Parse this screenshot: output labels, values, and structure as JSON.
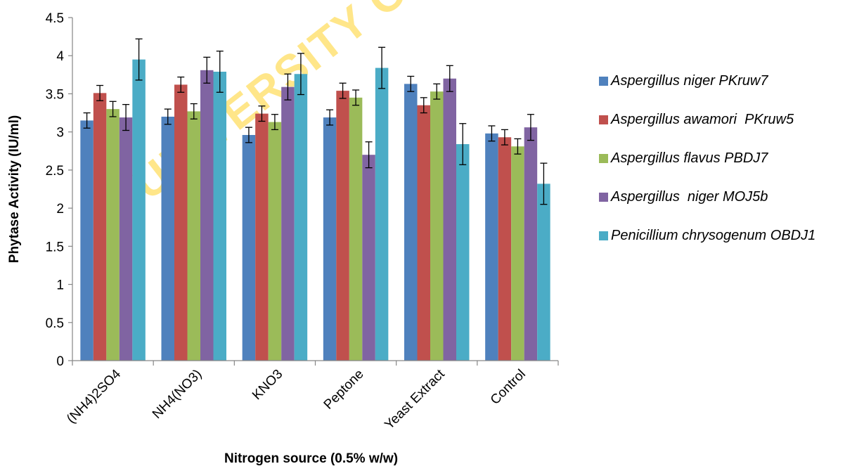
{
  "watermark": "UNIVERSITY OF IBADAN",
  "chart_data": {
    "type": "bar",
    "title": "",
    "xlabel": "Nitrogen source (0.5% w/w)",
    "ylabel": "Phytase Activity (IU/ml)",
    "ylim": [
      0,
      4.5
    ],
    "yticks": [
      "0",
      "0.5",
      "1",
      "1.5",
      "2",
      "2.5",
      "3",
      "3.5",
      "4",
      "4.5"
    ],
    "grid": false,
    "legend_position": "right",
    "categories": [
      "(NH4)2SO4",
      "NH4(NO3)",
      "KNO3",
      "Peptone",
      "Yeast Extract",
      "Control"
    ],
    "series": [
      {
        "name": "Aspergillus niger PKruw7",
        "color": "#4F81BD",
        "values": [
          3.15,
          3.2,
          2.96,
          3.19,
          3.63,
          2.98
        ],
        "errors": [
          0.1,
          0.1,
          0.1,
          0.1,
          0.1,
          0.1
        ]
      },
      {
        "name": "Aspergillus awamori  PKruw5",
        "color": "#C0504D",
        "values": [
          3.51,
          3.62,
          3.24,
          3.54,
          3.35,
          2.93
        ],
        "errors": [
          0.1,
          0.1,
          0.1,
          0.1,
          0.1,
          0.1
        ]
      },
      {
        "name": "Aspergillus flavus PBDJ7",
        "color": "#9BBB59",
        "values": [
          3.3,
          3.27,
          3.13,
          3.45,
          3.53,
          2.81
        ],
        "errors": [
          0.1,
          0.1,
          0.1,
          0.1,
          0.1,
          0.1
        ]
      },
      {
        "name": "Aspergillus  niger MOJ5b",
        "color": "#8064A2",
        "values": [
          3.19,
          3.81,
          3.59,
          2.7,
          3.7,
          3.06
        ],
        "errors": [
          0.17,
          0.17,
          0.17,
          0.17,
          0.17,
          0.17
        ]
      },
      {
        "name": "Penicillium chrysogenum OBDJ1",
        "color": "#4BACC6",
        "values": [
          3.95,
          3.79,
          3.76,
          3.84,
          2.84,
          2.32
        ],
        "errors": [
          0.27,
          0.27,
          0.27,
          0.27,
          0.27,
          0.27
        ]
      }
    ]
  }
}
